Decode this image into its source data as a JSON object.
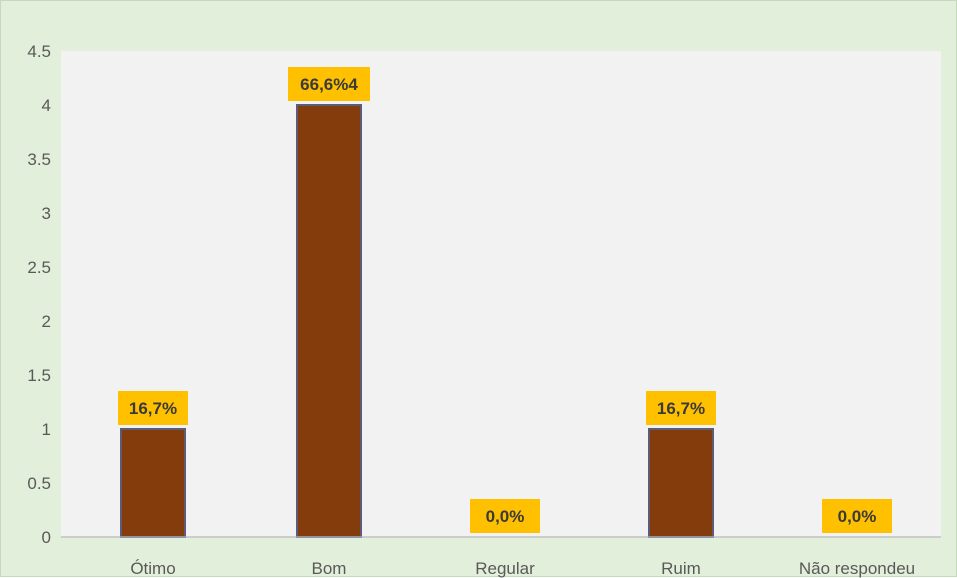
{
  "chart_data": {
    "type": "bar",
    "categories": [
      "Ótimo",
      "Bom",
      "Regular",
      "Ruim",
      "Não respondeu"
    ],
    "values": [
      1,
      4,
      0,
      1,
      0
    ],
    "data_labels": [
      "16,7%",
      "66,6%4",
      "0,0%",
      "16,7%",
      "0,0%"
    ],
    "y_ticks": [
      "0",
      "0.5",
      "1",
      "1.5",
      "2",
      "2.5",
      "3",
      "3.5",
      "4",
      "4.5"
    ],
    "ylim": [
      0,
      4.5
    ],
    "grid": false,
    "legend": "none",
    "colors": {
      "bar": "#843c0c",
      "bar_border": "#5b5b7a",
      "label_box": "#ffc000",
      "background": "#e2efda",
      "plot_area": "#f2f2f2"
    }
  }
}
